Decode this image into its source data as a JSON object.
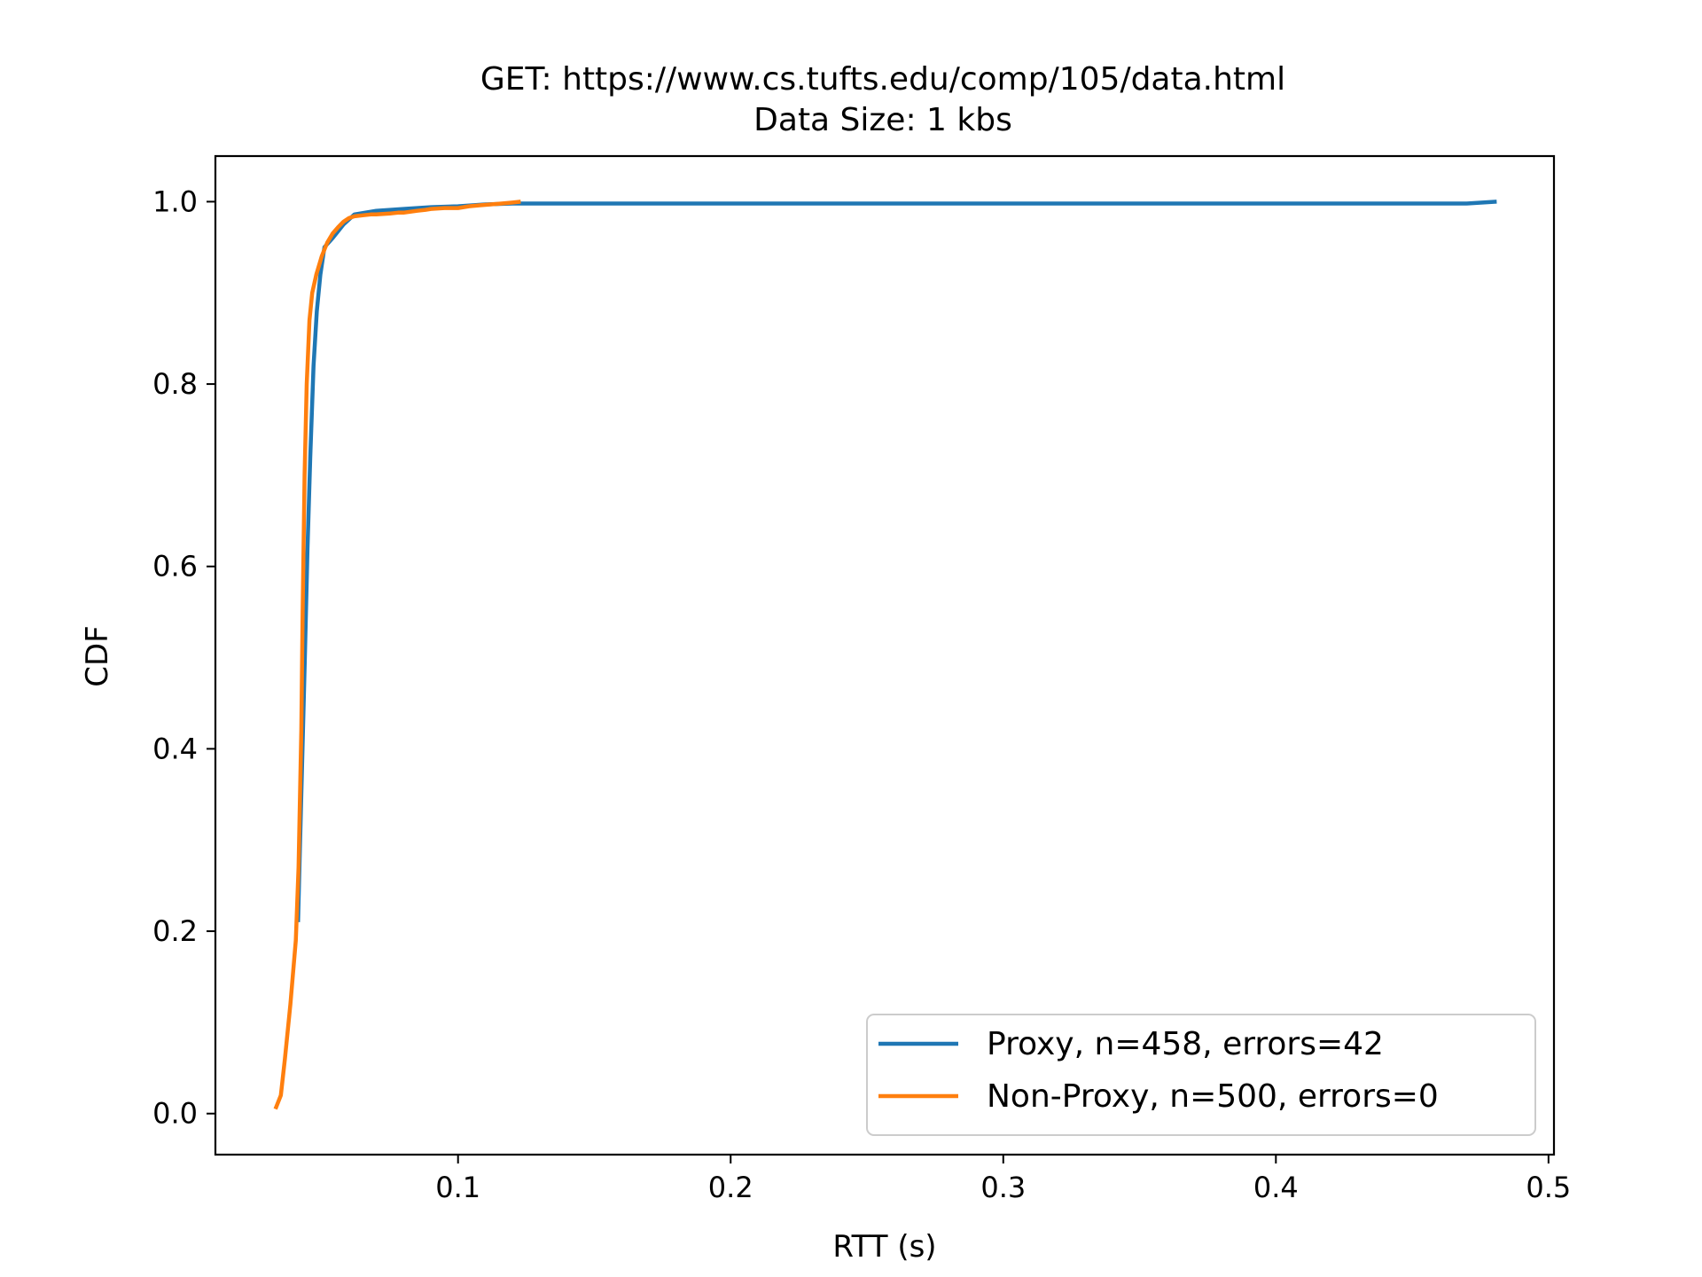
{
  "chart_data": {
    "type": "line",
    "title": "GET: https://www.cs.tufts.edu/comp/105/data.html",
    "subtitle": "Data Size: 1 kbs",
    "xlabel": "RTT (s)",
    "ylabel": "CDF",
    "xlim": [
      0.011,
      0.502
    ],
    "ylim": [
      -0.045,
      1.05
    ],
    "xticks": [
      0.1,
      0.2,
      0.3,
      0.4,
      0.5
    ],
    "xtick_labels": [
      "0.1",
      "0.2",
      "0.3",
      "0.4",
      "0.5"
    ],
    "yticks": [
      0.0,
      0.2,
      0.4,
      0.6,
      0.8,
      1.0
    ],
    "ytick_labels": [
      "0.0",
      "0.2",
      "0.4",
      "0.6",
      "0.8",
      "1.0"
    ],
    "grid": false,
    "legend_position": "lower-right",
    "series": [
      {
        "name": "Proxy, n=458, errors=42",
        "color": "#1f77b4",
        "x": [
          0.0413,
          0.0425,
          0.0438,
          0.0448,
          0.0458,
          0.047,
          0.0482,
          0.0495,
          0.051,
          0.054,
          0.058,
          0.062,
          0.07,
          0.08,
          0.09,
          0.1,
          0.11,
          0.12,
          0.2,
          0.3,
          0.4,
          0.47,
          0.481
        ],
        "y": [
          0.21,
          0.35,
          0.5,
          0.62,
          0.72,
          0.82,
          0.88,
          0.92,
          0.95,
          0.96,
          0.975,
          0.986,
          0.99,
          0.992,
          0.994,
          0.995,
          0.997,
          0.998,
          0.998,
          0.998,
          0.998,
          0.998,
          1.0
        ]
      },
      {
        "name": "Non-Proxy, n=500, errors=0",
        "color": "#ff7f0e",
        "x": [
          0.033,
          0.035,
          0.0365,
          0.0385,
          0.0405,
          0.0415,
          0.0425,
          0.043,
          0.0437,
          0.0445,
          0.0455,
          0.0465,
          0.048,
          0.05,
          0.052,
          0.054,
          0.056,
          0.058,
          0.06,
          0.062,
          0.065,
          0.068,
          0.07,
          0.075,
          0.078,
          0.08,
          0.085,
          0.088,
          0.09,
          0.095,
          0.1,
          0.104,
          0.108,
          0.112,
          0.116,
          0.12,
          0.123
        ],
        "y": [
          0.005,
          0.02,
          0.06,
          0.12,
          0.19,
          0.27,
          0.42,
          0.55,
          0.7,
          0.8,
          0.87,
          0.9,
          0.92,
          0.94,
          0.955,
          0.965,
          0.972,
          0.978,
          0.982,
          0.984,
          0.985,
          0.986,
          0.986,
          0.987,
          0.988,
          0.988,
          0.99,
          0.991,
          0.992,
          0.993,
          0.993,
          0.995,
          0.996,
          0.997,
          0.998,
          0.999,
          1.0
        ]
      }
    ]
  }
}
